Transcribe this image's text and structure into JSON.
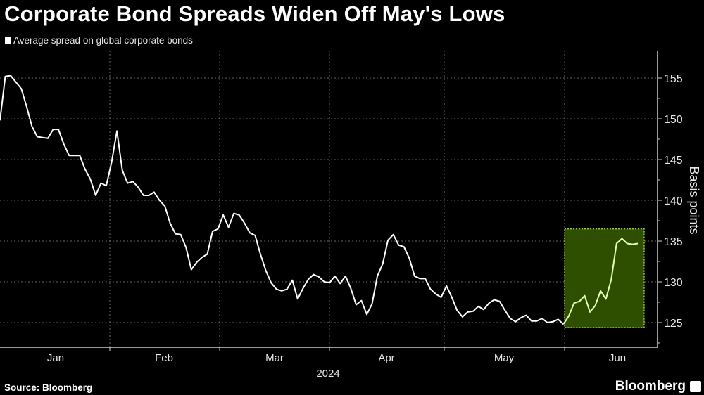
{
  "title": "Corporate Bond Spreads Widen Off May's Lows",
  "source": "Source: Bloomberg",
  "brand": "Bloomberg",
  "colors": {
    "background": "#000000",
    "line": "#ffffff",
    "highlight_fill": "#2f4f00",
    "highlight_border": "#9acd32",
    "highlight_line": "#e6ffb0"
  },
  "chart_data": {
    "type": "line",
    "title": "Corporate Bond Spreads Widen Off May's Lows",
    "ylabel": "Basis points",
    "xlabel": "2024",
    "ylim": [
      122,
      158
    ],
    "yticks": [
      125,
      130,
      135,
      140,
      145,
      150,
      155
    ],
    "y_axis_side": "right",
    "x_tick_labels": [
      "Jan",
      "Feb",
      "Mar",
      "Apr",
      "May",
      "Jun"
    ],
    "grid": true,
    "legend_position": "top-left",
    "highlight_region": {
      "from_month": "late May",
      "y_range": [
        124.4,
        136.5
      ]
    },
    "series": [
      {
        "name": "Average spread on global corporate bonds",
        "frequency": "daily",
        "values": [
          149.8,
          155.2,
          155.3,
          154.5,
          153.7,
          151.5,
          149.1,
          147.8,
          147.7,
          147.6,
          148.7,
          148.7,
          146.9,
          145.5,
          145.5,
          145.5,
          143.8,
          142.6,
          140.6,
          142.1,
          141.8,
          144.7,
          148.5,
          143.7,
          142.1,
          142.3,
          141.6,
          140.6,
          140.6,
          141.0,
          140.0,
          139.3,
          137.2,
          135.9,
          135.8,
          134.2,
          131.5,
          132.4,
          133.0,
          133.4,
          136.2,
          136.5,
          138.2,
          136.7,
          138.4,
          138.2,
          137.2,
          136.0,
          135.7,
          133.4,
          131.4,
          129.9,
          129.1,
          128.9,
          129.1,
          130.2,
          127.9,
          129.2,
          130.3,
          130.9,
          130.6,
          130.0,
          129.9,
          130.7,
          129.8,
          130.7,
          129.2,
          127.2,
          127.7,
          126.0,
          127.3,
          130.7,
          132.2,
          135.1,
          135.8,
          134.5,
          134.3,
          132.9,
          130.7,
          130.4,
          130.4,
          129.1,
          128.5,
          128.1,
          129.5,
          128.1,
          126.5,
          125.7,
          126.3,
          126.4,
          127.0,
          126.6,
          127.4,
          127.8,
          127.6,
          126.5,
          125.5,
          125.1,
          125.6,
          125.9,
          125.2,
          125.2,
          125.5,
          125.0,
          125.1,
          125.4,
          124.8,
          125.8,
          127.4,
          127.6,
          128.3,
          126.3,
          127.1,
          128.9,
          127.9,
          130.3,
          134.7,
          135.3,
          134.7,
          134.6,
          134.7
        ]
      }
    ]
  }
}
